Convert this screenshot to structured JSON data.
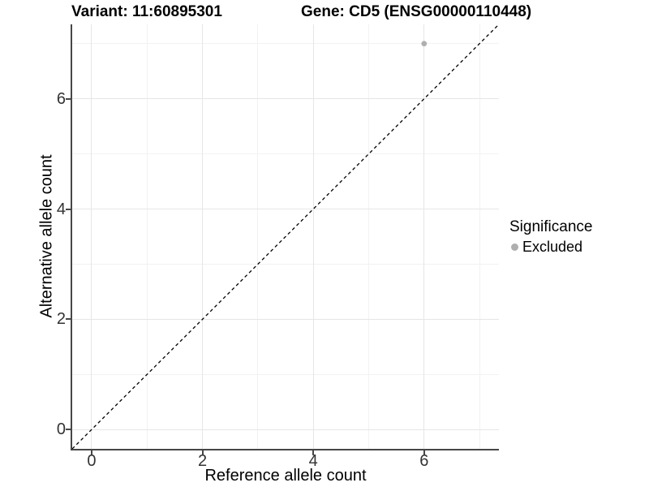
{
  "header": {
    "variant_title": "Variant: 11:60895301",
    "gene_title": "Gene: CD5 (ENSG00000110448)"
  },
  "chart_data": {
    "type": "scatter",
    "title": "Variant: 11:60895301   Gene: CD5 (ENSG00000110448)",
    "xlabel": "Reference allele count",
    "ylabel": "Alternative allele count",
    "xlim": [
      -0.35,
      7.35
    ],
    "ylim": [
      -0.35,
      7.35
    ],
    "x_ticks": [
      0,
      2,
      4,
      6
    ],
    "y_ticks": [
      0,
      2,
      4,
      6
    ],
    "x_minor_ticks": [
      1,
      3,
      5,
      7
    ],
    "y_minor_ticks": [
      1,
      3,
      5,
      7
    ],
    "grid": true,
    "series": [
      {
        "name": "Excluded",
        "color": "#afafaf",
        "points": [
          {
            "x": 6,
            "y": 7
          }
        ]
      }
    ],
    "reference_line": {
      "kind": "identity",
      "from": [
        -0.35,
        -0.35
      ],
      "to": [
        7.35,
        7.35
      ],
      "style": "dashed",
      "color": "#000000"
    },
    "legend": {
      "title": "Significance",
      "position": "right",
      "entries": [
        {
          "label": "Excluded",
          "color": "#afafaf"
        }
      ]
    }
  },
  "colors": {
    "background": "#ffffff",
    "grid_major": "#e6e6e6",
    "grid_minor": "#f2f2f2",
    "axis_line": "#474747",
    "tick_mark": "#474747",
    "tick_label": "#333333",
    "point": "#afafaf"
  }
}
